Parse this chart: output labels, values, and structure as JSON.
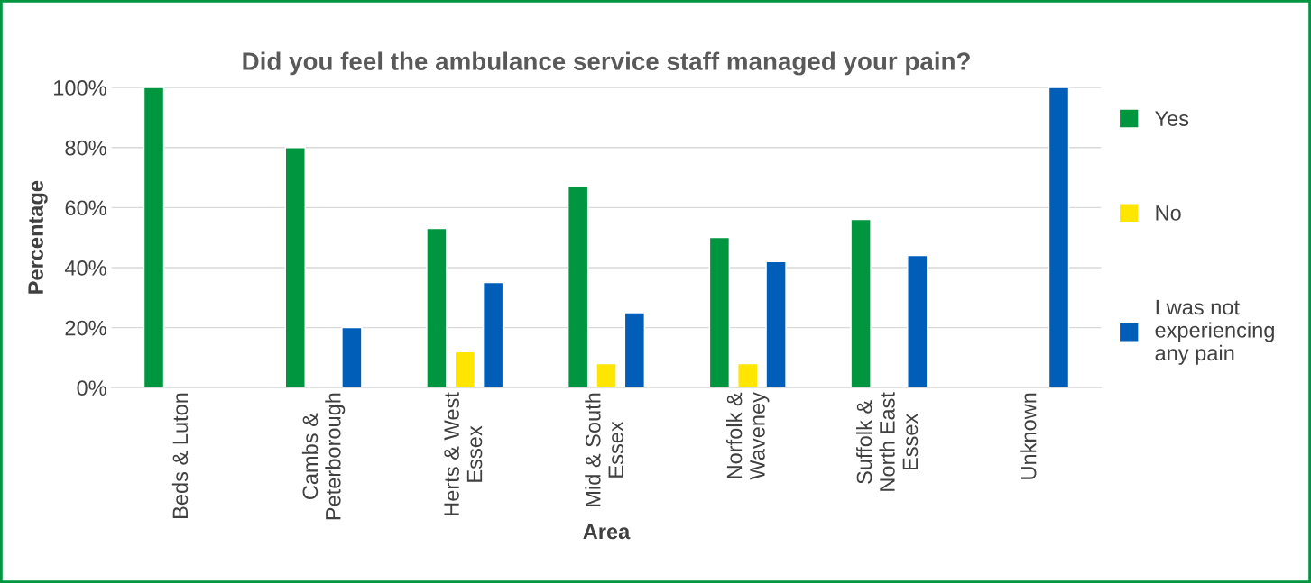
{
  "chart_data": {
    "type": "bar",
    "title": "Did you feel the ambulance service staff managed your pain?",
    "xlabel": "Area",
    "ylabel": "Percentage",
    "categories": [
      "Beds & Luton",
      "Cambs &\nPeterborough",
      "Herts & West\nEssex",
      "Mid & South\nEssex",
      "Norfolk &\nWaveney",
      "Suffolk &\nNorth East\nEssex",
      "Unknown"
    ],
    "series": [
      {
        "name": "Yes",
        "color": "#00963f",
        "values": [
          100,
          80,
          53,
          67,
          50,
          56,
          null
        ]
      },
      {
        "name": "No",
        "color": "#ffe600",
        "values": [
          null,
          null,
          12,
          8,
          8,
          null,
          null
        ]
      },
      {
        "name": "I was not\nexperiencing\nany pain",
        "color": "#005eb8",
        "values": [
          null,
          20,
          35,
          25,
          42,
          44,
          100
        ]
      }
    ],
    "ylim": [
      0,
      100
    ],
    "yticks": [
      {
        "value": 0,
        "label": "0%"
      },
      {
        "value": 20,
        "label": "20%"
      },
      {
        "value": 40,
        "label": "40%"
      },
      {
        "value": 60,
        "label": "60%"
      },
      {
        "value": 80,
        "label": "80%"
      },
      {
        "value": 100,
        "label": "100%"
      }
    ],
    "grid": "y",
    "legend": "right"
  }
}
